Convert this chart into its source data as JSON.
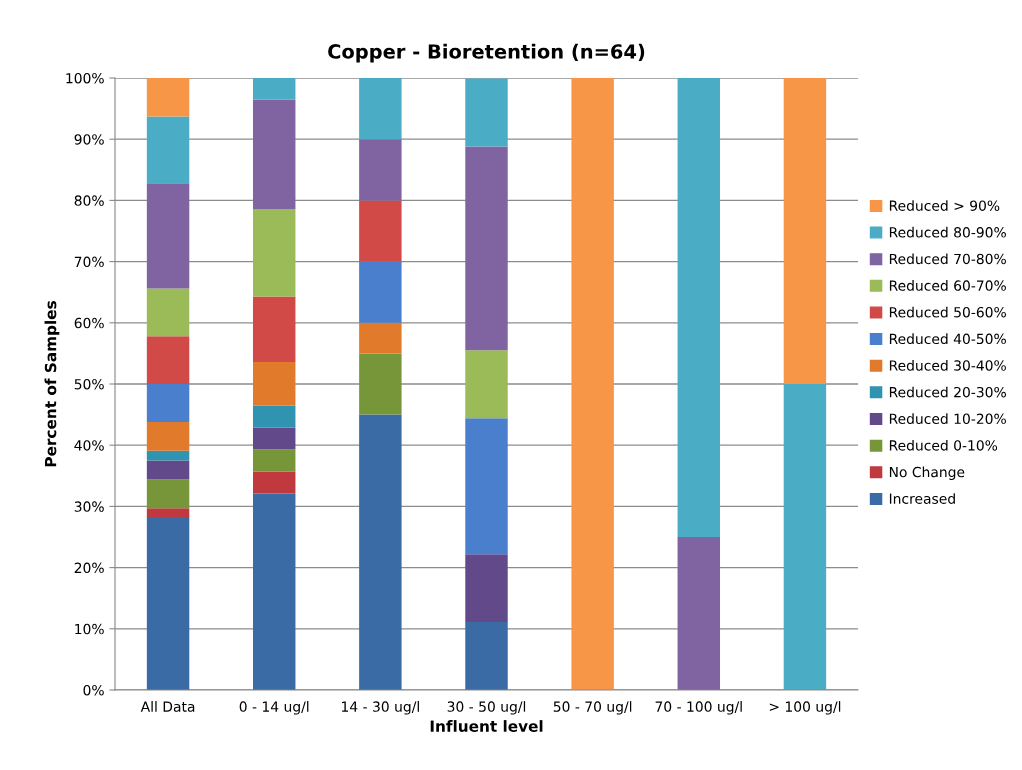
{
  "chart_data": {
    "type": "bar",
    "title": "Copper - Bioretention (n=64)",
    "xlabel": "Influent level",
    "ylabel": "Percent of Samples",
    "categories": [
      "All Data",
      "0 - 14 ug/l",
      "14 - 30 ug/l",
      "30 - 50 ug/l",
      "50 - 70 ug/l",
      "70 - 100 ug/l",
      "> 100 ug/l"
    ],
    "stacked": true,
    "grid": "y",
    "legend": "right",
    "ylim": [
      0,
      100
    ],
    "yticks": [
      {
        "value": 0,
        "label": "0%"
      },
      {
        "value": 10,
        "label": "10%"
      },
      {
        "value": 20,
        "label": "20%"
      },
      {
        "value": 30,
        "label": "30%"
      },
      {
        "value": 40,
        "label": "40%"
      },
      {
        "value": 50,
        "label": "50%"
      },
      {
        "value": 60,
        "label": "60%"
      },
      {
        "value": 70,
        "label": "70%"
      },
      {
        "value": 80,
        "label": "80%"
      },
      {
        "value": 90,
        "label": "90%"
      },
      {
        "value": 100,
        "label": "100%"
      }
    ],
    "series": [
      {
        "name": "Increased",
        "color": "#3a6ba5",
        "values": [
          28.1,
          32.1,
          45,
          11.1,
          0,
          0,
          0
        ]
      },
      {
        "name": "No Change",
        "color": "#c0393e",
        "values": [
          1.6,
          3.6,
          0,
          0,
          0,
          0,
          0
        ]
      },
      {
        "name": "Reduced 0-10%",
        "color": "#77963a",
        "values": [
          4.7,
          3.6,
          10,
          0,
          0,
          0,
          0
        ]
      },
      {
        "name": "Reduced 10-20%",
        "color": "#624a8a",
        "values": [
          3.1,
          3.6,
          0,
          11.1,
          0,
          0,
          0
        ]
      },
      {
        "name": "Reduced 20-30%",
        "color": "#3093b0",
        "values": [
          1.6,
          3.6,
          0,
          0,
          0,
          0,
          0
        ]
      },
      {
        "name": "Reduced 30-40%",
        "color": "#e17a2b",
        "values": [
          4.7,
          7.1,
          5,
          0,
          0,
          0,
          0
        ]
      },
      {
        "name": "Reduced 40-50%",
        "color": "#4a7fcd",
        "values": [
          6.2,
          0,
          10,
          22.2,
          0,
          0,
          0
        ]
      },
      {
        "name": "Reduced 50-60%",
        "color": "#d14a48",
        "values": [
          7.8,
          10.7,
          10,
          0,
          0,
          0,
          0
        ]
      },
      {
        "name": "Reduced 60-70%",
        "color": "#9bbb59",
        "values": [
          7.8,
          14.3,
          0,
          11.1,
          0,
          0,
          0
        ]
      },
      {
        "name": "Reduced 70-80%",
        "color": "#8064a2",
        "values": [
          17.2,
          17.9,
          10,
          33.3,
          0,
          25,
          0
        ]
      },
      {
        "name": "Reduced 80-90%",
        "color": "#4bacc6",
        "values": [
          10.9,
          3.6,
          10,
          11.1,
          0,
          75,
          50
        ]
      },
      {
        "name": "Reduced > 90%",
        "color": "#f79646",
        "values": [
          6.3,
          0,
          0,
          0,
          100,
          0,
          50
        ]
      }
    ]
  }
}
